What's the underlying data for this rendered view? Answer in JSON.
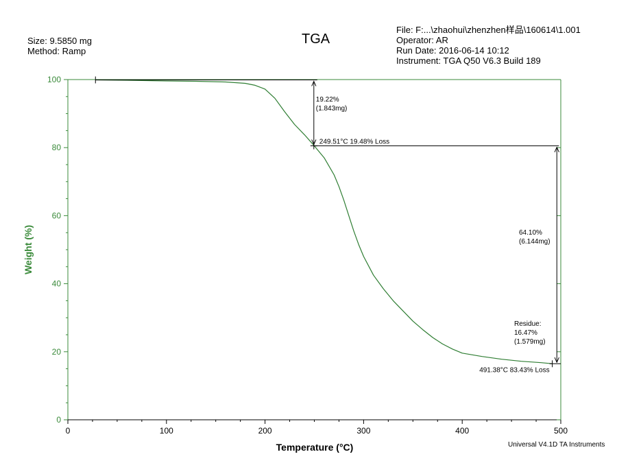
{
  "header": {
    "title": "TGA",
    "sample_size": "Size:  9.5850 mg",
    "method": "Method: Ramp",
    "file": "File: F:...\\zhaohui\\zhenzhen样品\\160614\\1.001",
    "operator": "Operator: AR",
    "run_date": "Run Date: 2016-06-14 10:12",
    "instrument": "Instrument: TGA Q50 V6.3 Build 189"
  },
  "footer": "Universal V4.1D TA Instruments",
  "colors": {
    "curve": "#2e7d32",
    "axis_green": "#3a8a3a",
    "axis_black": "#000000"
  },
  "chart_data": {
    "type": "line",
    "xlabel": "Temperature (°C)",
    "ylabel": "Weight (%)",
    "xlim": [
      0,
      500
    ],
    "ylim": [
      0,
      100
    ],
    "xticks": [
      "0",
      "100",
      "200",
      "300",
      "400",
      "500"
    ],
    "yticks": [
      "0",
      "20",
      "40",
      "60",
      "80",
      "100"
    ],
    "grid": false,
    "series": [
      {
        "x": [
          28,
          60,
          100,
          130,
          160,
          180,
          190,
          200,
          210,
          220,
          230,
          240,
          250,
          260,
          270,
          275,
          280,
          285,
          290,
          295,
          300,
          310,
          320,
          330,
          340,
          350,
          360,
          370,
          380,
          390,
          400,
          420,
          440,
          460,
          480,
          491
        ],
        "y": [
          99.9,
          99.8,
          99.6,
          99.5,
          99.3,
          98.9,
          98.3,
          97.2,
          94.5,
          90.5,
          86.8,
          83.8,
          80.5,
          77.0,
          72.0,
          68.5,
          64.5,
          60.0,
          55.5,
          51.5,
          48.0,
          42.5,
          38.5,
          35.0,
          32.0,
          29.0,
          26.5,
          24.2,
          22.3,
          20.8,
          19.6,
          18.6,
          17.8,
          17.2,
          16.8,
          16.5
        ]
      }
    ],
    "annotations": {
      "step1_percent": "19.22%",
      "step1_mass": "(1.843mg)",
      "point1_label": "249.51°C 19.48% Loss",
      "step2_percent": "64.10%",
      "step2_mass": "(6.144mg)",
      "residue_title": "Residue:",
      "residue_percent": "16.47%",
      "residue_mass": "(1.579mg)",
      "point2_label": "491.38°C 83.43% Loss"
    }
  }
}
